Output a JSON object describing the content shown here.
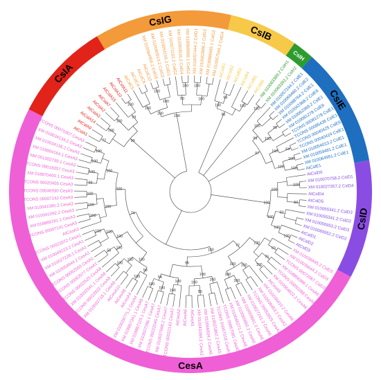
{
  "groups": [
    {
      "name": "CsIA",
      "color": "#e2231a",
      "start": 297,
      "end": 329,
      "label_angle": 313
    },
    {
      "name": "CsIG",
      "color": "#f39a3a",
      "start": 329,
      "end": 13,
      "label_angle": 350
    },
    {
      "name": "CsIB",
      "color": "#f7c948",
      "start": 13,
      "end": 35,
      "label_angle": 24
    },
    {
      "name": "CsIH",
      "color": "#2e9b2f",
      "start": 35,
      "end": 42,
      "label_angle": 38.5
    },
    {
      "name": "CsIE",
      "color": "#1e6fbf",
      "start": 42,
      "end": 80,
      "label_angle": 58
    },
    {
      "name": "CsID",
      "color": "#8a4de3",
      "start": 80,
      "end": 118,
      "label_angle": 99
    },
    {
      "name": "CesA",
      "color": "#ef5fd6",
      "start": 118,
      "end": 297,
      "label_angle": 180
    }
  ],
  "leaves": [
    {
      "label": "AtCslA1",
      "group": "CsIA"
    },
    {
      "label": "AtCslA9",
      "group": "CsIA"
    },
    {
      "label": "AtCslA14",
      "group": "CsIA"
    },
    {
      "label": "AtCslA3",
      "group": "CsIA"
    },
    {
      "label": "AtCslA2",
      "group": "CsIA"
    },
    {
      "label": "AtCslA7",
      "group": "CsIA"
    },
    {
      "label": "AtCslA15",
      "group": "CsIA"
    },
    {
      "label": "AtCslA10",
      "group": "CsIA"
    },
    {
      "label": "AtCslA11",
      "group": "CsIA"
    },
    {
      "label": "AtCslC5",
      "group": "CsIG"
    },
    {
      "label": "AtCslC4",
      "group": "CsIG"
    },
    {
      "label": "AtCslC6",
      "group": "CsIG"
    },
    {
      "label": "AtCslC12",
      "group": "CsIG"
    },
    {
      "label": "XM 010064954.2 CslG5",
      "group": "CsIG"
    },
    {
      "label": "XM 010060913.2 CslG3",
      "group": "CsIG"
    },
    {
      "label": "XM 010054155.2 CslG1",
      "group": "CsIG"
    },
    {
      "label": "XM 010071152.2 CslG2",
      "group": "CsIG"
    },
    {
      "label": "XM 010060916.2 CslG4",
      "group": "CsIG"
    },
    {
      "label": "XM 018868888.1 CslG2",
      "group": "CsIG"
    },
    {
      "label": "XM 010057444.2 CslG1",
      "group": "CsIG"
    },
    {
      "label": "XM 010062888.2 CslG2",
      "group": "CsIG"
    },
    {
      "label": "XM 018866665.1 CslG3",
      "group": "CsIG"
    },
    {
      "label": "XM 010057544.2 CslG4",
      "group": "CsIG"
    },
    {
      "label": "AtCslB1",
      "group": "CsIB"
    },
    {
      "label": "AtCslB2",
      "group": "CsIB"
    },
    {
      "label": "AtCslB3",
      "group": "CsIB"
    },
    {
      "label": "AtCslB4",
      "group": "CsIB"
    },
    {
      "label": "AtCslB5",
      "group": "CsIB"
    },
    {
      "label": "AtCslB6",
      "group": "CsIB"
    },
    {
      "label": "XM 010063389.2 CslH1",
      "group": "CsIH"
    },
    {
      "label": "XM 010063393.2 CslH2",
      "group": "CsIH"
    },
    {
      "label": "XM 010057244.2 CslE1",
      "group": "CsIE"
    },
    {
      "label": "XM 010069460.2 CslE2",
      "group": "CsIE"
    },
    {
      "label": "XM 010068764.2 CslE1",
      "group": "CsIE"
    },
    {
      "label": "XM 010042368.2 CslE6",
      "group": "CsIE"
    },
    {
      "label": "XM 010062369.2 CslE1",
      "group": "CsIE"
    },
    {
      "label": "XM 010081278 CslE6",
      "group": "CsIE"
    },
    {
      "label": "TCONS 00081278 CslE1",
      "group": "CsIE"
    },
    {
      "label": "TCONS 00085436 CslE1",
      "group": "CsIE"
    },
    {
      "label": "TCONS 00040425 CslE6",
      "group": "CsIE"
    },
    {
      "label": "TCONS 00040424 CslE1",
      "group": "CsIE"
    },
    {
      "label": "XM 010054013.2 CslE1",
      "group": "CsIE"
    },
    {
      "label": "XM 010059481.2 CslE1",
      "group": "CsIE"
    },
    {
      "label": "XM 010064951.2 CslE1",
      "group": "CsIE"
    },
    {
      "label": "AtCslE1",
      "group": "CsIE"
    },
    {
      "label": "AtCslD6",
      "group": "CsID"
    },
    {
      "label": "XM 010070758.2 CslD1",
      "group": "CsID"
    },
    {
      "label": "XM 010027357.2 CslD4",
      "group": "CsID"
    },
    {
      "label": "AtCslD4",
      "group": "CsID"
    },
    {
      "label": "AtCslD5",
      "group": "CsID"
    },
    {
      "label": "XM 010055341.2 CslD3",
      "group": "CsID"
    },
    {
      "label": "XM 010055341.2 CslD3",
      "group": "CsID"
    },
    {
      "label": "XM 010056953.2 CslD3",
      "group": "CsID"
    },
    {
      "label": "XM 010069952.2 CslD2",
      "group": "CsID"
    },
    {
      "label": "AtCslD1",
      "group": "CsID"
    },
    {
      "label": "AtCslD2",
      "group": "CsID"
    },
    {
      "label": "AtCslD3",
      "group": "CsID"
    },
    {
      "label": "XM 010036645.2 CslD3",
      "group": "CesA"
    },
    {
      "label": "XM 010036644.2 CslD3",
      "group": "CesA"
    },
    {
      "label": "TCONS 00072067 CslD3",
      "group": "CesA"
    },
    {
      "label": "XM 018868388.1 CesA6",
      "group": "CesA"
    },
    {
      "label": "TCONS 00050288 CesA6",
      "group": "CesA"
    },
    {
      "label": "XM 010064822.2 CesA6",
      "group": "CesA"
    },
    {
      "label": "AtCesA9",
      "group": "CesA"
    },
    {
      "label": "XM 010036410.2 CesA6",
      "group": "CesA"
    },
    {
      "label": "XM 010036453.2 CesA2",
      "group": "CesA"
    },
    {
      "label": "TCONS 00052825 CesA2",
      "group": "CesA"
    },
    {
      "label": "XM 010027241.2 CesA6",
      "group": "CesA"
    },
    {
      "label": "NM 010059661.2 CesA6",
      "group": "CesA"
    },
    {
      "label": "XM 010065892.2 CesA6",
      "group": "CesA"
    },
    {
      "label": "XM 010046271.2 CesA8",
      "group": "CesA"
    },
    {
      "label": "TCONS 00067081 CesA5",
      "group": "CesA"
    },
    {
      "label": "TCONS 00067018 CesA3",
      "group": "CesA"
    },
    {
      "label": "XM 010021862.2 CesA5",
      "group": "CesA"
    },
    {
      "label": "XM 010066834.2 CesA5",
      "group": "CesA"
    },
    {
      "label": "XM 010041084.2 CesA2",
      "group": "CesA"
    },
    {
      "label": "AtCesA5",
      "group": "CesA"
    },
    {
      "label": "AtCesA6",
      "group": "CesA"
    },
    {
      "label": "AtCesA2",
      "group": "CesA"
    },
    {
      "label": "TCONS 00022143 CesA7",
      "group": "CesA"
    },
    {
      "label": "XM 010037098.2 CesA7",
      "group": "CesA"
    },
    {
      "label": "TCONS 00022045 CesA7",
      "group": "CesA"
    },
    {
      "label": "XM 010027286.1 CesA7",
      "group": "CesA"
    },
    {
      "label": "XM 018867115.1 CesA7",
      "group": "CesA"
    },
    {
      "label": "XM 018867341.1 CesA8",
      "group": "CesA"
    },
    {
      "label": "XM 010028771.2 CesA4",
      "group": "CesA"
    },
    {
      "label": "AtCesA4",
      "group": "CesA"
    },
    {
      "label": "AtCesA8",
      "group": "CesA"
    },
    {
      "label": "AtCesA10",
      "group": "CesA"
    },
    {
      "label": "XM 010032718.1 CesA8",
      "group": "CesA"
    },
    {
      "label": "TCONS 00022822 CesA8",
      "group": "CesA"
    },
    {
      "label": "XM 010032541.1 CesA8",
      "group": "CesA"
    },
    {
      "label": "TCONS 00022525 CesA8",
      "group": "CesA"
    },
    {
      "label": "TCONS 00062577 CesA1",
      "group": "CesA"
    },
    {
      "label": "TCONS 00062593 CesA1",
      "group": "CesA"
    },
    {
      "label": "XM 010054944.2 CesA1",
      "group": "CesA"
    },
    {
      "label": "XM 010027228.1 CesA1",
      "group": "CesA"
    },
    {
      "label": "XM 010049223.2 CesA1",
      "group": "CesA"
    },
    {
      "label": "TCONS 00021872 CesA1",
      "group": "CesA"
    },
    {
      "label": "AtCesA3",
      "group": "CesA"
    },
    {
      "label": "TCONS 00007141 CesA3",
      "group": "CesA"
    },
    {
      "label": "XM 018868191.1 CesA3",
      "group": "CesA"
    },
    {
      "label": "XM 010041092.2 CesA3",
      "group": "CesA"
    },
    {
      "label": "XM 010041085.2 CesA3",
      "group": "CesA"
    },
    {
      "label": "TCONS 00007142 CesA3",
      "group": "CesA"
    },
    {
      "label": "TCONS 00046930 CesA3",
      "group": "CesA"
    },
    {
      "label": "TCONS 00020455 CesA3",
      "group": "CesA"
    },
    {
      "label": "XM 018870400.1 CesA3",
      "group": "CesA"
    },
    {
      "label": "TCONS 00019357 CesA3",
      "group": "CesA"
    },
    {
      "label": "NM 001302739.1 CesA3",
      "group": "CesA"
    },
    {
      "label": "XM 018864164.1 CesA3",
      "group": "CesA"
    },
    {
      "label": "XM 010034135.2 CesA3",
      "group": "CesA"
    },
    {
      "label": "XM 010034134.2 CesA3",
      "group": "CesA"
    },
    {
      "label": "TCONS 00070307 CesA3",
      "group": "CesA"
    }
  ],
  "bootstrap": [
    "100",
    "99",
    "96",
    "100",
    "100",
    "100",
    "99",
    "98",
    "100",
    "97",
    "100",
    "64",
    "100",
    "100",
    "100",
    "100",
    "100",
    "50",
    "100",
    "50",
    "100",
    "100",
    "100",
    "50",
    "100",
    "76",
    "100",
    "72",
    "100",
    "100",
    "100",
    "100",
    "100",
    "100",
    "100",
    "55",
    "100",
    "96",
    "100",
    "100",
    "100",
    "54",
    "100",
    "58",
    "100",
    "100",
    "100",
    "100",
    "100",
    "55",
    "100",
    "100",
    "100",
    "74",
    "100",
    "100",
    "100",
    "100",
    "100",
    "99",
    "100",
    "100",
    "100",
    "100",
    "72",
    "100",
    "99",
    "100",
    "53",
    "100",
    "100",
    "100",
    "100",
    "100",
    "100",
    "50",
    "100",
    "100",
    "100"
  ]
}
